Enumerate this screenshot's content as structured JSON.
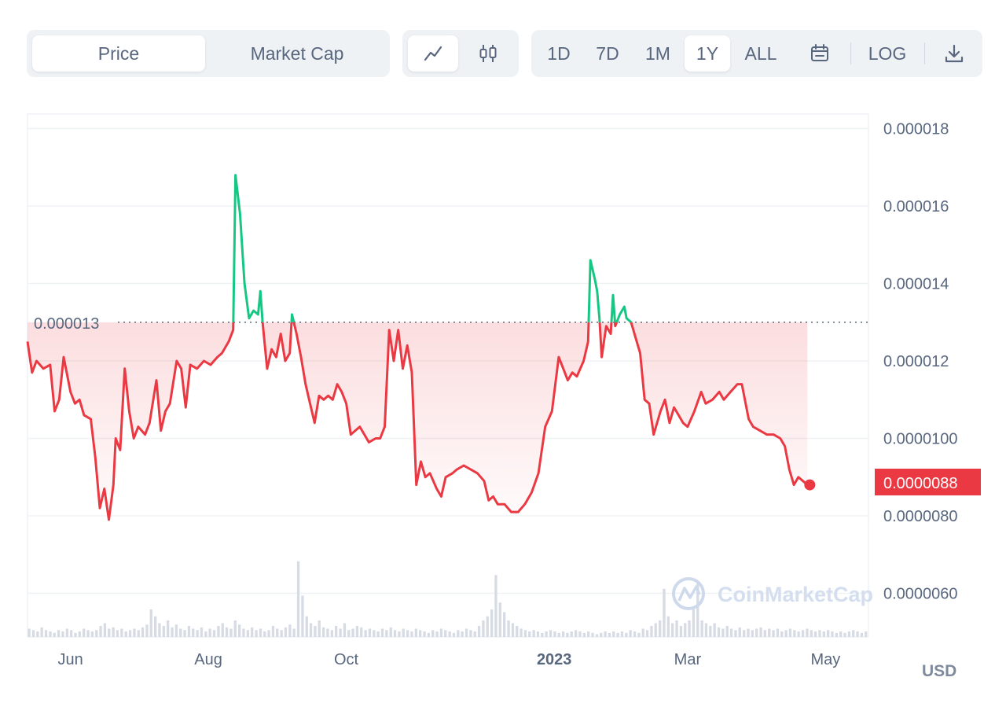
{
  "tabs": {
    "price": "Price",
    "market_cap": "Market Cap"
  },
  "chart_type_icons": {
    "line": "line-chart-icon",
    "candle": "candlestick-icon"
  },
  "ranges": [
    "1D",
    "7D",
    "1M",
    "1Y",
    "ALL"
  ],
  "active_range": "1Y",
  "log_label": "LOG",
  "icons": {
    "calendar": "calendar-icon",
    "download": "download-icon"
  },
  "currency": "USD",
  "watermark": "CoinMarketCap",
  "colors": {
    "up": "#16c784",
    "down": "#ea3943",
    "price_tag_bg": "#ea3943"
  },
  "chart_data": {
    "type": "line",
    "xlabel": "",
    "ylabel": "",
    "ylim": [
      5e-06,
      1.85e-05
    ],
    "y_ticks": [
      "0.000018",
      "0.000016",
      "0.000014",
      "0.000012",
      "0.0000100",
      "0.0000080",
      "0.0000060"
    ],
    "y_tick_values": [
      1.8e-05,
      1.6e-05,
      1.4e-05,
      1.2e-05,
      1e-05,
      8e-06,
      6e-06
    ],
    "x_ticks": [
      {
        "label": "Jun",
        "x": "2022-06-01",
        "bold": false
      },
      {
        "label": "Aug",
        "x": "2022-08-01",
        "bold": false
      },
      {
        "label": "Oct",
        "x": "2022-10-01",
        "bold": false
      },
      {
        "label": "2023",
        "x": "2023-01-01",
        "bold": true
      },
      {
        "label": "Mar",
        "x": "2023-03-01",
        "bold": false
      },
      {
        "label": "May",
        "x": "2023-05-01",
        "bold": false
      }
    ],
    "x_start": "2022-05-13",
    "x_end": "2023-05-20",
    "reference_label": "0.000013",
    "reference_value": 1.3e-05,
    "current_price_label": "0.0000088",
    "current_price": 8.8e-06,
    "grid": true,
    "series": [
      {
        "points": [
          [
            "2022-05-13",
            1.25e-05
          ],
          [
            "2022-05-15",
            1.17e-05
          ],
          [
            "2022-05-17",
            1.2e-05
          ],
          [
            "2022-05-20",
            1.18e-05
          ],
          [
            "2022-05-23",
            1.19e-05
          ],
          [
            "2022-05-25",
            1.07e-05
          ],
          [
            "2022-05-27",
            1.1e-05
          ],
          [
            "2022-05-29",
            1.21e-05
          ],
          [
            "2022-06-01",
            1.12e-05
          ],
          [
            "2022-06-03",
            1.09e-05
          ],
          [
            "2022-06-05",
            1.1e-05
          ],
          [
            "2022-06-07",
            1.06e-05
          ],
          [
            "2022-06-10",
            1.05e-05
          ],
          [
            "2022-06-12",
            9.5e-06
          ],
          [
            "2022-06-14",
            8.2e-06
          ],
          [
            "2022-06-16",
            8.7e-06
          ],
          [
            "2022-06-18",
            7.9e-06
          ],
          [
            "2022-06-20",
            8.8e-06
          ],
          [
            "2022-06-21",
            1e-05
          ],
          [
            "2022-06-23",
            9.7e-06
          ],
          [
            "2022-06-25",
            1.18e-05
          ],
          [
            "2022-06-27",
            1.07e-05
          ],
          [
            "2022-06-29",
            1e-05
          ],
          [
            "2022-07-01",
            1.03e-05
          ],
          [
            "2022-07-04",
            1.01e-05
          ],
          [
            "2022-07-06",
            1.04e-05
          ],
          [
            "2022-07-09",
            1.15e-05
          ],
          [
            "2022-07-11",
            1.02e-05
          ],
          [
            "2022-07-13",
            1.07e-05
          ],
          [
            "2022-07-15",
            1.09e-05
          ],
          [
            "2022-07-18",
            1.2e-05
          ],
          [
            "2022-07-20",
            1.18e-05
          ],
          [
            "2022-07-22",
            1.08e-05
          ],
          [
            "2022-07-24",
            1.19e-05
          ],
          [
            "2022-07-27",
            1.18e-05
          ],
          [
            "2022-07-30",
            1.2e-05
          ],
          [
            "2022-08-02",
            1.19e-05
          ],
          [
            "2022-08-05",
            1.21e-05
          ],
          [
            "2022-08-07",
            1.22e-05
          ],
          [
            "2022-08-10",
            1.25e-05
          ],
          [
            "2022-08-12",
            1.28e-05
          ],
          [
            "2022-08-13",
            1.68e-05
          ],
          [
            "2022-08-15",
            1.58e-05
          ],
          [
            "2022-08-17",
            1.4e-05
          ],
          [
            "2022-08-19",
            1.31e-05
          ],
          [
            "2022-08-21",
            1.33e-05
          ],
          [
            "2022-08-23",
            1.32e-05
          ],
          [
            "2022-08-24",
            1.38e-05
          ],
          [
            "2022-08-25",
            1.3e-05
          ],
          [
            "2022-08-27",
            1.18e-05
          ],
          [
            "2022-08-29",
            1.23e-05
          ],
          [
            "2022-08-31",
            1.21e-05
          ],
          [
            "2022-09-02",
            1.27e-05
          ],
          [
            "2022-09-04",
            1.2e-05
          ],
          [
            "2022-09-06",
            1.22e-05
          ],
          [
            "2022-09-07",
            1.32e-05
          ],
          [
            "2022-09-09",
            1.27e-05
          ],
          [
            "2022-09-11",
            1.21e-05
          ],
          [
            "2022-09-13",
            1.14e-05
          ],
          [
            "2022-09-15",
            1.09e-05
          ],
          [
            "2022-09-17",
            1.04e-05
          ],
          [
            "2022-09-19",
            1.11e-05
          ],
          [
            "2022-09-21",
            1.1e-05
          ],
          [
            "2022-09-23",
            1.11e-05
          ],
          [
            "2022-09-25",
            1.1e-05
          ],
          [
            "2022-09-27",
            1.14e-05
          ],
          [
            "2022-09-29",
            1.12e-05
          ],
          [
            "2022-10-01",
            1.09e-05
          ],
          [
            "2022-10-03",
            1.01e-05
          ],
          [
            "2022-10-05",
            1.02e-05
          ],
          [
            "2022-10-07",
            1.03e-05
          ],
          [
            "2022-10-09",
            1.01e-05
          ],
          [
            "2022-10-11",
            9.9e-06
          ],
          [
            "2022-10-14",
            1e-05
          ],
          [
            "2022-10-16",
            1e-05
          ],
          [
            "2022-10-18",
            1.03e-05
          ],
          [
            "2022-10-20",
            1.28e-05
          ],
          [
            "2022-10-22",
            1.2e-05
          ],
          [
            "2022-10-24",
            1.28e-05
          ],
          [
            "2022-10-26",
            1.18e-05
          ],
          [
            "2022-10-28",
            1.24e-05
          ],
          [
            "2022-10-30",
            1.17e-05
          ],
          [
            "2022-11-01",
            8.8e-06
          ],
          [
            "2022-11-03",
            9.4e-06
          ],
          [
            "2022-11-05",
            9e-06
          ],
          [
            "2022-11-07",
            9.1e-06
          ],
          [
            "2022-11-10",
            8.7e-06
          ],
          [
            "2022-11-12",
            8.5e-06
          ],
          [
            "2022-11-14",
            9e-06
          ],
          [
            "2022-11-17",
            9.1e-06
          ],
          [
            "2022-11-19",
            9.2e-06
          ],
          [
            "2022-11-22",
            9.3e-06
          ],
          [
            "2022-11-25",
            9.2e-06
          ],
          [
            "2022-11-28",
            9.1e-06
          ],
          [
            "2022-12-01",
            8.9e-06
          ],
          [
            "2022-12-03",
            8.4e-06
          ],
          [
            "2022-12-05",
            8.5e-06
          ],
          [
            "2022-12-07",
            8.3e-06
          ],
          [
            "2022-12-10",
            8.3e-06
          ],
          [
            "2022-12-13",
            8.1e-06
          ],
          [
            "2022-12-16",
            8.1e-06
          ],
          [
            "2022-12-19",
            8.3e-06
          ],
          [
            "2022-12-22",
            8.6e-06
          ],
          [
            "2022-12-25",
            9.1e-06
          ],
          [
            "2022-12-28",
            1.03e-05
          ],
          [
            "2022-12-31",
            1.07e-05
          ],
          [
            "2023-01-03",
            1.21e-05
          ],
          [
            "2023-01-05",
            1.18e-05
          ],
          [
            "2023-01-07",
            1.15e-05
          ],
          [
            "2023-01-09",
            1.17e-05
          ],
          [
            "2023-01-11",
            1.16e-05
          ],
          [
            "2023-01-14",
            1.2e-05
          ],
          [
            "2023-01-16",
            1.25e-05
          ],
          [
            "2023-01-17",
            1.46e-05
          ],
          [
            "2023-01-19",
            1.41e-05
          ],
          [
            "2023-01-20",
            1.38e-05
          ],
          [
            "2023-01-21",
            1.31e-05
          ],
          [
            "2023-01-22",
            1.21e-05
          ],
          [
            "2023-01-24",
            1.29e-05
          ],
          [
            "2023-01-26",
            1.27e-05
          ],
          [
            "2023-01-27",
            1.37e-05
          ],
          [
            "2023-01-28",
            1.29e-05
          ],
          [
            "2023-01-30",
            1.32e-05
          ],
          [
            "2023-02-01",
            1.34e-05
          ],
          [
            "2023-02-02",
            1.31e-05
          ],
          [
            "2023-02-04",
            1.3e-05
          ],
          [
            "2023-02-06",
            1.26e-05
          ],
          [
            "2023-02-08",
            1.22e-05
          ],
          [
            "2023-02-10",
            1.1e-05
          ],
          [
            "2023-02-12",
            1.09e-05
          ],
          [
            "2023-02-14",
            1.01e-05
          ],
          [
            "2023-02-17",
            1.07e-05
          ],
          [
            "2023-02-19",
            1.1e-05
          ],
          [
            "2023-02-21",
            1.04e-05
          ],
          [
            "2023-02-23",
            1.08e-05
          ],
          [
            "2023-02-25",
            1.06e-05
          ],
          [
            "2023-02-27",
            1.04e-05
          ],
          [
            "2023-03-01",
            1.03e-05
          ],
          [
            "2023-03-04",
            1.07e-05
          ],
          [
            "2023-03-07",
            1.12e-05
          ],
          [
            "2023-03-09",
            1.09e-05
          ],
          [
            "2023-03-12",
            1.1e-05
          ],
          [
            "2023-03-15",
            1.12e-05
          ],
          [
            "2023-03-17",
            1.1e-05
          ],
          [
            "2023-03-20",
            1.12e-05
          ],
          [
            "2023-03-23",
            1.14e-05
          ],
          [
            "2023-03-25",
            1.14e-05
          ],
          [
            "2023-03-28",
            1.05e-05
          ],
          [
            "2023-03-30",
            1.03e-05
          ],
          [
            "2023-04-02",
            1.02e-05
          ],
          [
            "2023-04-05",
            1.01e-05
          ],
          [
            "2023-04-08",
            1.01e-05
          ],
          [
            "2023-04-11",
            1e-05
          ],
          [
            "2023-04-13",
            9.8e-06
          ],
          [
            "2023-04-15",
            9.2e-06
          ],
          [
            "2023-04-17",
            8.8e-06
          ],
          [
            "2023-04-19",
            9e-06
          ],
          [
            "2023-04-21",
            8.9e-06
          ],
          [
            "2023-04-23",
            8.8e-06
          ]
        ]
      }
    ],
    "volume": [
      0.06,
      0.05,
      0.04,
      0.07,
      0.05,
      0.04,
      0.03,
      0.05,
      0.04,
      0.06,
      0.05,
      0.03,
      0.04,
      0.06,
      0.05,
      0.04,
      0.05,
      0.08,
      0.1,
      0.06,
      0.07,
      0.05,
      0.06,
      0.04,
      0.05,
      0.06,
      0.05,
      0.07,
      0.09,
      0.2,
      0.15,
      0.1,
      0.08,
      0.12,
      0.07,
      0.09,
      0.06,
      0.05,
      0.08,
      0.06,
      0.05,
      0.07,
      0.04,
      0.06,
      0.05,
      0.08,
      0.1,
      0.07,
      0.06,
      0.12,
      0.09,
      0.06,
      0.05,
      0.07,
      0.05,
      0.06,
      0.04,
      0.05,
      0.08,
      0.06,
      0.05,
      0.07,
      0.09,
      0.06,
      0.55,
      0.3,
      0.15,
      0.1,
      0.08,
      0.12,
      0.07,
      0.06,
      0.05,
      0.08,
      0.06,
      0.1,
      0.05,
      0.06,
      0.08,
      0.07,
      0.05,
      0.06,
      0.05,
      0.04,
      0.06,
      0.05,
      0.07,
      0.05,
      0.04,
      0.06,
      0.05,
      0.04,
      0.06,
      0.05,
      0.04,
      0.03,
      0.05,
      0.04,
      0.06,
      0.05,
      0.04,
      0.03,
      0.05,
      0.04,
      0.06,
      0.05,
      0.04,
      0.08,
      0.12,
      0.15,
      0.2,
      0.45,
      0.25,
      0.18,
      0.12,
      0.1,
      0.08,
      0.06,
      0.05,
      0.04,
      0.05,
      0.04,
      0.03,
      0.04,
      0.05,
      0.04,
      0.03,
      0.04,
      0.03,
      0.04,
      0.05,
      0.04,
      0.03,
      0.04,
      0.03,
      0.02,
      0.03,
      0.04,
      0.03,
      0.04,
      0.03,
      0.04,
      0.03,
      0.05,
      0.04,
      0.03,
      0.06,
      0.05,
      0.08,
      0.1,
      0.12,
      0.35,
      0.15,
      0.1,
      0.12,
      0.08,
      0.1,
      0.12,
      0.2,
      0.4,
      0.12,
      0.1,
      0.08,
      0.1,
      0.07,
      0.06,
      0.08,
      0.06,
      0.05,
      0.07,
      0.05,
      0.06,
      0.05,
      0.06,
      0.07,
      0.05,
      0.06,
      0.05,
      0.06,
      0.04,
      0.05,
      0.06,
      0.05,
      0.04,
      0.05,
      0.06,
      0.05,
      0.04,
      0.05,
      0.04,
      0.05,
      0.04,
      0.03,
      0.04,
      0.03,
      0.04,
      0.05,
      0.04,
      0.03,
      0.04
    ]
  }
}
